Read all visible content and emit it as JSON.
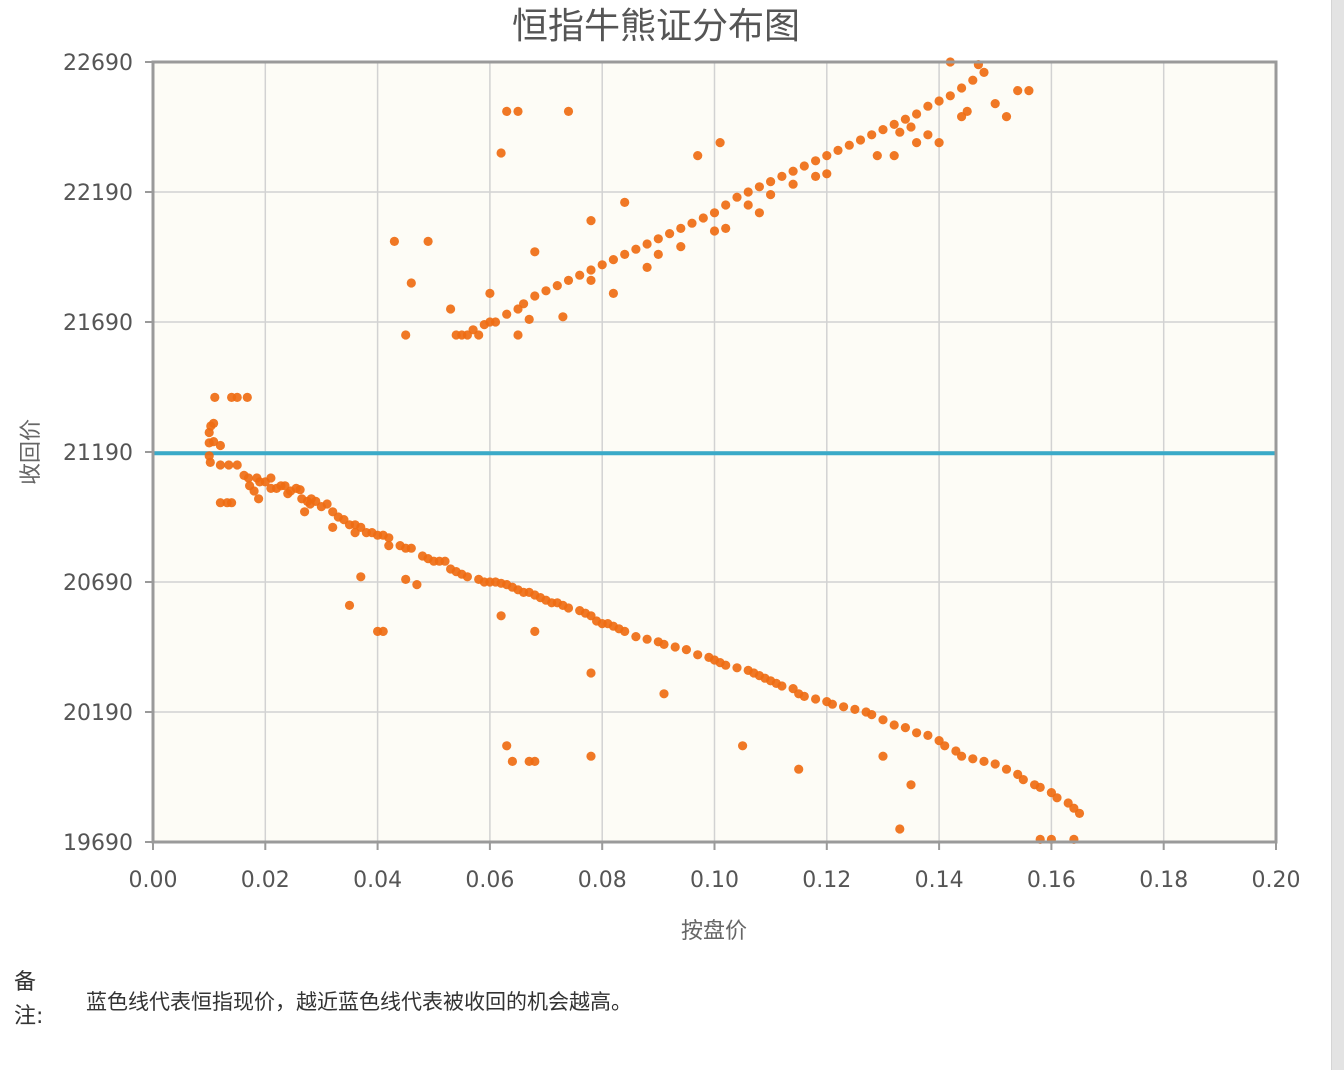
{
  "chart_data": {
    "type": "scatter",
    "title": "恒指牛熊证分布图",
    "xlabel": "按盘价",
    "ylabel": "收回价",
    "xlim": [
      0,
      0.2
    ],
    "ylim": [
      19690,
      22690
    ],
    "x_ticks": [
      0.0,
      0.02,
      0.04,
      0.06,
      0.08,
      0.1,
      0.12,
      0.14,
      0.16,
      0.18,
      0.2
    ],
    "x_tick_labels": [
      "0.00",
      "0.02",
      "0.04",
      "0.06",
      "0.08",
      "0.10",
      "0.12",
      "0.14",
      "0.16",
      "0.18",
      "0.20"
    ],
    "y_ticks": [
      19690,
      20190,
      20690,
      21190,
      21690,
      22190,
      22690
    ],
    "y_tick_labels": [
      "19690",
      "20190",
      "20690",
      "21190",
      "21690",
      "22190",
      "22690"
    ],
    "grid": true,
    "reference_line": {
      "y": 21185,
      "label": "恒指现价",
      "color": "#3aaac8"
    },
    "colors": {
      "points": "#ef6c12",
      "plot_bg": "#fdfcf6",
      "grid": "#d2d2d2",
      "border": "#9a9a9a"
    },
    "series": [
      {
        "name": "牛熊证",
        "points": [
          [
            0.01,
            21265
          ],
          [
            0.0103,
            21290
          ],
          [
            0.0108,
            21300
          ],
          [
            0.01,
            21225
          ],
          [
            0.0108,
            21230
          ],
          [
            0.01,
            21175
          ],
          [
            0.0102,
            21150
          ],
          [
            0.011,
            21400
          ],
          [
            0.014,
            21400
          ],
          [
            0.015,
            21400
          ],
          [
            0.0168,
            21400
          ],
          [
            0.012,
            21215
          ],
          [
            0.012,
            21140
          ],
          [
            0.0135,
            21140
          ],
          [
            0.012,
            20995
          ],
          [
            0.0132,
            20995
          ],
          [
            0.014,
            20995
          ],
          [
            0.015,
            21140
          ],
          [
            0.0162,
            21100
          ],
          [
            0.017,
            21090
          ],
          [
            0.0172,
            21060
          ],
          [
            0.018,
            21040
          ],
          [
            0.0185,
            21090
          ],
          [
            0.0188,
            21010
          ],
          [
            0.019,
            21075
          ],
          [
            0.02,
            21075
          ],
          [
            0.021,
            21090
          ],
          [
            0.021,
            21050
          ],
          [
            0.022,
            21050
          ],
          [
            0.0228,
            21060
          ],
          [
            0.0235,
            21060
          ],
          [
            0.024,
            21030
          ],
          [
            0.0245,
            21040
          ],
          [
            0.0255,
            21050
          ],
          [
            0.0262,
            21045
          ],
          [
            0.0265,
            21010
          ],
          [
            0.0275,
            21000
          ],
          [
            0.028,
            20990
          ],
          [
            0.027,
            20960
          ],
          [
            0.0282,
            21010
          ],
          [
            0.029,
            21000
          ],
          [
            0.03,
            20980
          ],
          [
            0.031,
            20990
          ],
          [
            0.032,
            20960
          ],
          [
            0.033,
            20940
          ],
          [
            0.034,
            20930
          ],
          [
            0.035,
            20910
          ],
          [
            0.036,
            20910
          ],
          [
            0.037,
            20900
          ],
          [
            0.038,
            20880
          ],
          [
            0.039,
            20880
          ],
          [
            0.04,
            20870
          ],
          [
            0.041,
            20870
          ],
          [
            0.042,
            20860
          ],
          [
            0.042,
            20830
          ],
          [
            0.044,
            20830
          ],
          [
            0.045,
            20820
          ],
          [
            0.046,
            20820
          ],
          [
            0.048,
            20790
          ],
          [
            0.049,
            20780
          ],
          [
            0.05,
            20770
          ],
          [
            0.051,
            20770
          ],
          [
            0.052,
            20770
          ],
          [
            0.053,
            20740
          ],
          [
            0.054,
            20730
          ],
          [
            0.055,
            20720
          ],
          [
            0.056,
            20710
          ],
          [
            0.058,
            20700
          ],
          [
            0.059,
            20690
          ],
          [
            0.06,
            20690
          ],
          [
            0.061,
            20690
          ],
          [
            0.062,
            20685
          ],
          [
            0.063,
            20680
          ],
          [
            0.064,
            20670
          ],
          [
            0.065,
            20660
          ],
          [
            0.066,
            20650
          ],
          [
            0.067,
            20650
          ],
          [
            0.068,
            20640
          ],
          [
            0.069,
            20630
          ],
          [
            0.07,
            20620
          ],
          [
            0.071,
            20610
          ],
          [
            0.072,
            20610
          ],
          [
            0.073,
            20600
          ],
          [
            0.074,
            20590
          ],
          [
            0.076,
            20580
          ],
          [
            0.077,
            20570
          ],
          [
            0.078,
            20560
          ],
          [
            0.079,
            20540
          ],
          [
            0.08,
            20530
          ],
          [
            0.081,
            20530
          ],
          [
            0.082,
            20520
          ],
          [
            0.083,
            20510
          ],
          [
            0.084,
            20500
          ],
          [
            0.086,
            20480
          ],
          [
            0.088,
            20470
          ],
          [
            0.09,
            20460
          ],
          [
            0.091,
            20450
          ],
          [
            0.093,
            20440
          ],
          [
            0.095,
            20430
          ],
          [
            0.097,
            20410
          ],
          [
            0.099,
            20400
          ],
          [
            0.1,
            20390
          ],
          [
            0.101,
            20380
          ],
          [
            0.102,
            20370
          ],
          [
            0.104,
            20360
          ],
          [
            0.106,
            20350
          ],
          [
            0.107,
            20340
          ],
          [
            0.108,
            20330
          ],
          [
            0.109,
            20320
          ],
          [
            0.11,
            20310
          ],
          [
            0.111,
            20300
          ],
          [
            0.112,
            20290
          ],
          [
            0.114,
            20280
          ],
          [
            0.115,
            20260
          ],
          [
            0.116,
            20250
          ],
          [
            0.118,
            20240
          ],
          [
            0.12,
            20230
          ],
          [
            0.121,
            20220
          ],
          [
            0.123,
            20210
          ],
          [
            0.125,
            20200
          ],
          [
            0.127,
            20190
          ],
          [
            0.128,
            20180
          ],
          [
            0.13,
            20160
          ],
          [
            0.132,
            20140
          ],
          [
            0.134,
            20130
          ],
          [
            0.136,
            20110
          ],
          [
            0.138,
            20100
          ],
          [
            0.14,
            20080
          ],
          [
            0.141,
            20060
          ],
          [
            0.143,
            20040
          ],
          [
            0.144,
            20020
          ],
          [
            0.146,
            20010
          ],
          [
            0.148,
            20000
          ],
          [
            0.15,
            19990
          ],
          [
            0.152,
            19970
          ],
          [
            0.154,
            19950
          ],
          [
            0.155,
            19930
          ],
          [
            0.157,
            19910
          ],
          [
            0.158,
            19900
          ],
          [
            0.16,
            19880
          ],
          [
            0.161,
            19860
          ],
          [
            0.163,
            19840
          ],
          [
            0.164,
            19820
          ],
          [
            0.165,
            19800
          ],
          [
            0.158,
            19700
          ],
          [
            0.16,
            19700
          ],
          [
            0.164,
            19700
          ],
          [
            0.133,
            19740
          ],
          [
            0.13,
            20020
          ],
          [
            0.135,
            19910
          ],
          [
            0.115,
            19970
          ],
          [
            0.105,
            20060
          ],
          [
            0.091,
            20260
          ],
          [
            0.078,
            20020
          ],
          [
            0.068,
            20000
          ],
          [
            0.067,
            20000
          ],
          [
            0.064,
            20000
          ],
          [
            0.063,
            20060
          ],
          [
            0.068,
            20500
          ],
          [
            0.062,
            20560
          ],
          [
            0.078,
            20340
          ],
          [
            0.04,
            20500
          ],
          [
            0.041,
            20500
          ],
          [
            0.035,
            20600
          ],
          [
            0.037,
            20710
          ],
          [
            0.045,
            20700
          ],
          [
            0.047,
            20680
          ],
          [
            0.032,
            20900
          ],
          [
            0.036,
            20880
          ],
          [
            0.043,
            22000
          ],
          [
            0.049,
            22000
          ],
          [
            0.046,
            21840
          ],
          [
            0.045,
            21640
          ],
          [
            0.053,
            21740
          ],
          [
            0.054,
            21640
          ],
          [
            0.056,
            21640
          ],
          [
            0.057,
            21660
          ],
          [
            0.059,
            21680
          ],
          [
            0.06,
            21690
          ],
          [
            0.061,
            21690
          ],
          [
            0.063,
            21720
          ],
          [
            0.065,
            21740
          ],
          [
            0.066,
            21760
          ],
          [
            0.068,
            21790
          ],
          [
            0.07,
            21810
          ],
          [
            0.072,
            21830
          ],
          [
            0.074,
            21850
          ],
          [
            0.076,
            21870
          ],
          [
            0.078,
            21890
          ],
          [
            0.08,
            21910
          ],
          [
            0.082,
            21930
          ],
          [
            0.084,
            21950
          ],
          [
            0.086,
            21970
          ],
          [
            0.088,
            21990
          ],
          [
            0.09,
            22010
          ],
          [
            0.092,
            22030
          ],
          [
            0.094,
            22050
          ],
          [
            0.096,
            22070
          ],
          [
            0.098,
            22090
          ],
          [
            0.1,
            22110
          ],
          [
            0.102,
            22140
          ],
          [
            0.104,
            22170
          ],
          [
            0.106,
            22190
          ],
          [
            0.108,
            22210
          ],
          [
            0.11,
            22230
          ],
          [
            0.112,
            22250
          ],
          [
            0.114,
            22270
          ],
          [
            0.116,
            22290
          ],
          [
            0.118,
            22310
          ],
          [
            0.12,
            22330
          ],
          [
            0.122,
            22350
          ],
          [
            0.124,
            22370
          ],
          [
            0.126,
            22390
          ],
          [
            0.128,
            22410
          ],
          [
            0.13,
            22430
          ],
          [
            0.132,
            22450
          ],
          [
            0.134,
            22470
          ],
          [
            0.136,
            22490
          ],
          [
            0.138,
            22520
          ],
          [
            0.14,
            22540
          ],
          [
            0.142,
            22560
          ],
          [
            0.144,
            22590
          ],
          [
            0.146,
            22620
          ],
          [
            0.148,
            22650
          ],
          [
            0.142,
            22690
          ],
          [
            0.147,
            22680
          ],
          [
            0.15,
            22530
          ],
          [
            0.152,
            22480
          ],
          [
            0.154,
            22580
          ],
          [
            0.156,
            22580
          ],
          [
            0.138,
            22410
          ],
          [
            0.14,
            22380
          ],
          [
            0.136,
            22380
          ],
          [
            0.132,
            22330
          ],
          [
            0.118,
            22250
          ],
          [
            0.108,
            22110
          ],
          [
            0.102,
            22050
          ],
          [
            0.101,
            22380
          ],
          [
            0.097,
            22330
          ],
          [
            0.084,
            22150
          ],
          [
            0.082,
            21800
          ],
          [
            0.078,
            21850
          ],
          [
            0.068,
            21960
          ],
          [
            0.073,
            21710
          ],
          [
            0.078,
            22080
          ],
          [
            0.065,
            21640
          ],
          [
            0.058,
            21640
          ],
          [
            0.06,
            21800
          ],
          [
            0.062,
            22340
          ],
          [
            0.063,
            22500
          ],
          [
            0.065,
            22500
          ],
          [
            0.074,
            22500
          ],
          [
            0.055,
            21640
          ],
          [
            0.067,
            21700
          ],
          [
            0.088,
            21900
          ],
          [
            0.09,
            21950
          ],
          [
            0.094,
            21980
          ],
          [
            0.1,
            22040
          ],
          [
            0.106,
            22140
          ],
          [
            0.11,
            22180
          ],
          [
            0.114,
            22220
          ],
          [
            0.12,
            22260
          ],
          [
            0.129,
            22330
          ],
          [
            0.133,
            22420
          ],
          [
            0.145,
            22500
          ],
          [
            0.135,
            22440
          ],
          [
            0.144,
            22480
          ]
        ]
      }
    ],
    "note": {
      "label": "备注:",
      "text": "蓝色线代表恒指现价，越近蓝色线代表被收回的机会越高。"
    }
  }
}
